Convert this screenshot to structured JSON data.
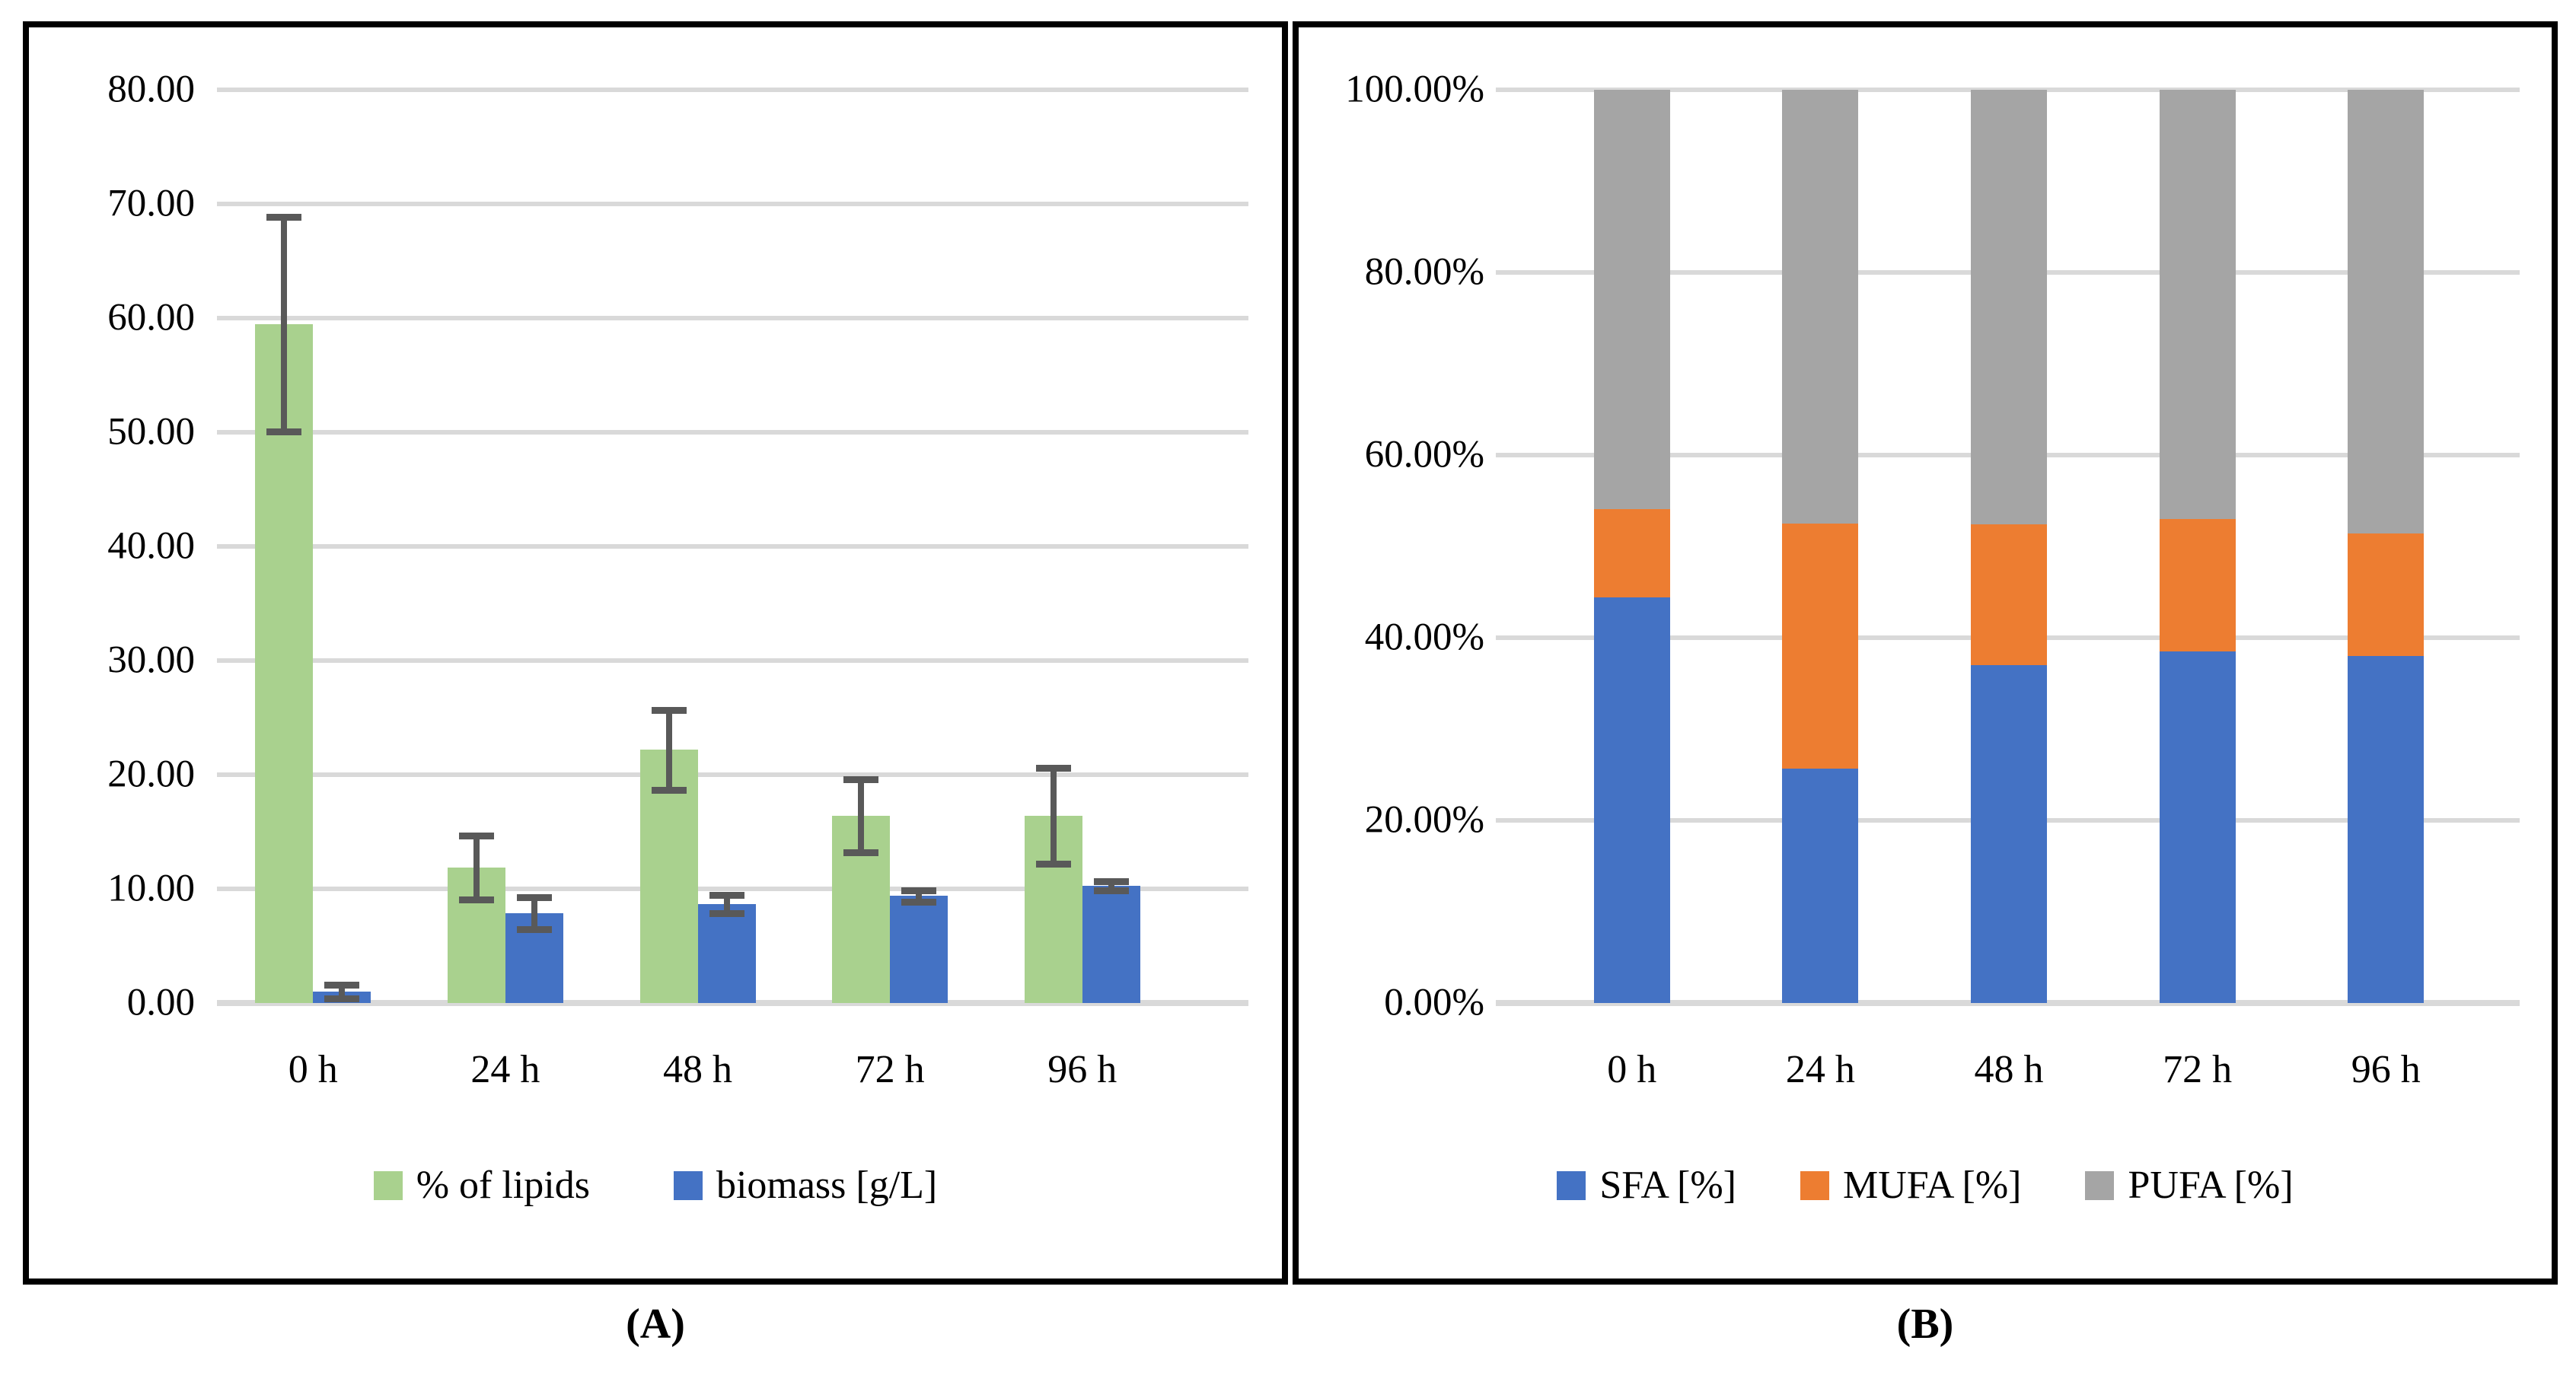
{
  "figure": {
    "background": "#FFFFFF",
    "panel_border_color": "#000000",
    "gridline_color": "#D9D9D9",
    "error_bar_color": "#595959"
  },
  "chart_data": [
    {
      "id": "A",
      "type": "bar",
      "title": "",
      "caption": "(A)",
      "categories": [
        "0 h",
        "24 h",
        "48 h",
        "72 h",
        "96 h"
      ],
      "series": [
        {
          "name": "% of lipids",
          "color": "#A9D18E",
          "values": [
            59.5,
            11.9,
            22.2,
            16.4,
            16.4
          ],
          "errors": [
            9.4,
            2.8,
            3.5,
            3.2,
            4.2
          ]
        },
        {
          "name": "biomass [g/L]",
          "color": "#4472C4",
          "values": [
            1.0,
            7.9,
            8.7,
            9.4,
            10.3
          ],
          "errors": [
            0.6,
            1.4,
            0.8,
            0.5,
            0.4
          ]
        }
      ],
      "ylim": [
        0,
        80
      ],
      "ytick_step": 10,
      "ytick_labels": [
        "0.00",
        "10.00",
        "20.00",
        "30.00",
        "40.00",
        "50.00",
        "60.00",
        "70.00",
        "80.00"
      ],
      "grid": true,
      "legend_position": "bottom",
      "error_bars": true
    },
    {
      "id": "B",
      "type": "stacked-bar",
      "title": "",
      "caption": "(B)",
      "categories": [
        "0 h",
        "24 h",
        "48 h",
        "72 h",
        "96 h"
      ],
      "series": [
        {
          "name": "SFA [%]",
          "color": "#4472C4",
          "values": [
            44.4,
            25.7,
            37.0,
            38.5,
            38.0
          ]
        },
        {
          "name": "MUFA [%]",
          "color": "#ED7D31",
          "values": [
            9.7,
            26.8,
            15.4,
            14.5,
            13.4
          ]
        },
        {
          "name": "PUFA [%]",
          "color": "#A5A5A5",
          "values": [
            45.9,
            47.5,
            47.6,
            47.0,
            48.6
          ]
        }
      ],
      "ylim": [
        0,
        100
      ],
      "ytick_step": 20,
      "ytick_labels": [
        "0.00%",
        "20.00%",
        "40.00%",
        "60.00%",
        "80.00%",
        "100.00%"
      ],
      "grid": true,
      "legend_position": "bottom",
      "error_bars": false
    }
  ]
}
